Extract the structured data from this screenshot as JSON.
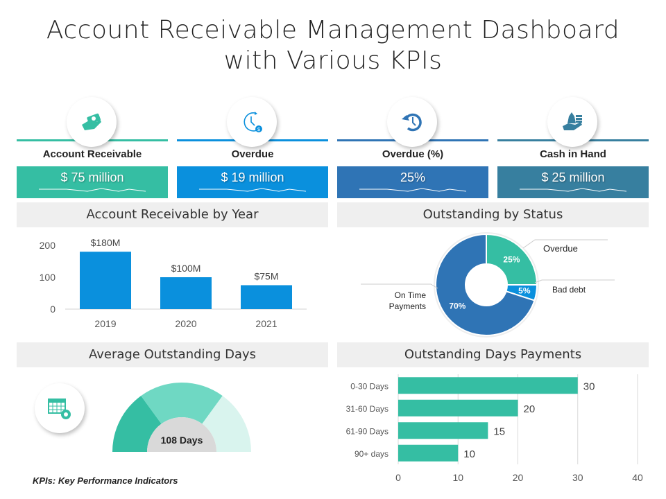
{
  "title_line1": "Account Receivable Management Dashboard",
  "title_line2": "with Various KPIs",
  "kpis": [
    {
      "label": "Account Receivable",
      "value": "$ 75 million",
      "icon": "hand-money-icon",
      "color": "#35bea3"
    },
    {
      "label": "Overdue",
      "value": "$ 19 million",
      "icon": "clock-dollar-icon",
      "color": "#0a90dd"
    },
    {
      "label": "Overdue (%)",
      "value": "25%",
      "icon": "history-icon",
      "color": "#2f74b5"
    },
    {
      "label": "Cash in Hand",
      "value": "$ 25 million",
      "icon": "cash-hand-icon",
      "color": "#377f9f"
    }
  ],
  "sections": {
    "ar_by_year": "Account Receivable by Year",
    "outstanding_status": "Outstanding by Status",
    "avg_days": "Average Outstanding Days",
    "days_payments": "Outstanding Days Payments"
  },
  "gauge": {
    "value_label": "108 Days",
    "colors": [
      "#35bea3",
      "#6fd8c3",
      "#d9f4ee"
    ]
  },
  "footer": "KPIs: Key Performance Indicators",
  "chart_data": [
    {
      "type": "bar",
      "title": "Account Receivable by Year",
      "categories": [
        "2019",
        "2020",
        "2021"
      ],
      "values": [
        180,
        100,
        75
      ],
      "data_labels": [
        "$180M",
        "$100M",
        "$75M"
      ],
      "yticks": [
        "0",
        "100",
        "200"
      ],
      "ylim": [
        0,
        200
      ],
      "color": "#0a90dd"
    },
    {
      "type": "pie",
      "title": "Outstanding by Status",
      "slices": [
        {
          "name": "Overdue",
          "value": 25,
          "label": "25%",
          "color": "#35bea3"
        },
        {
          "name": "Bad debt",
          "value": 5,
          "label": "5%",
          "color": "#0a90dd"
        },
        {
          "name": "On Time Payments",
          "value": 70,
          "label": "70%",
          "color": "#2f74b5"
        }
      ],
      "legend_names": [
        "Overdue",
        "Bad debt",
        "On Time",
        "Payments"
      ]
    },
    {
      "type": "bar",
      "orientation": "horizontal",
      "title": "Outstanding Days Payments",
      "categories": [
        "0-30 Days",
        "31-60 Days",
        "61-90 Days",
        "90+ days"
      ],
      "values": [
        30,
        20,
        15,
        10
      ],
      "data_labels": [
        "30",
        "20",
        "15",
        "10"
      ],
      "xticks": [
        "0",
        "10",
        "20",
        "30",
        "40"
      ],
      "xlim": [
        0,
        40
      ],
      "color": "#35bea3"
    }
  ]
}
